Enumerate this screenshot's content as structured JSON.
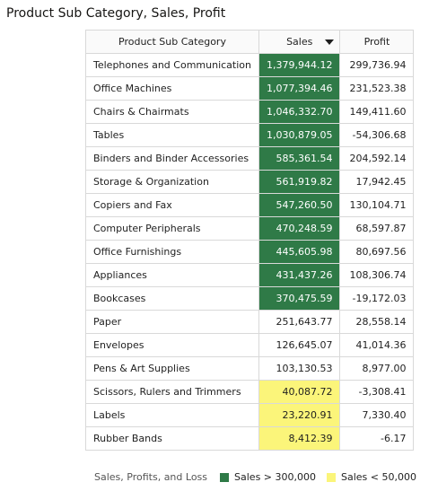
{
  "title": "Product Sub Category, Sales, Profit",
  "columns": {
    "category": "Product Sub Category",
    "sales": "Sales",
    "profit": "Profit"
  },
  "sort_icon": "caret-down-icon",
  "colors": {
    "high": "#2f7a47",
    "low": "#fbf57a"
  },
  "rows": [
    {
      "category": "Telephones and Communication",
      "sales": "1,379,944.12",
      "profit": "299,736.94",
      "band": "high"
    },
    {
      "category": "Office Machines",
      "sales": "1,077,394.46",
      "profit": "231,523.38",
      "band": "high"
    },
    {
      "category": "Chairs & Chairmats",
      "sales": "1,046,332.70",
      "profit": "149,411.60",
      "band": "high"
    },
    {
      "category": "Tables",
      "sales": "1,030,879.05",
      "profit": "-54,306.68",
      "band": "high"
    },
    {
      "category": "Binders and Binder Accessories",
      "sales": "585,361.54",
      "profit": "204,592.14",
      "band": "high"
    },
    {
      "category": "Storage & Organization",
      "sales": "561,919.82",
      "profit": "17,942.45",
      "band": "high"
    },
    {
      "category": "Copiers and Fax",
      "sales": "547,260.50",
      "profit": "130,104.71",
      "band": "high"
    },
    {
      "category": "Computer Peripherals",
      "sales": "470,248.59",
      "profit": "68,597.87",
      "band": "high"
    },
    {
      "category": "Office Furnishings",
      "sales": "445,605.98",
      "profit": "80,697.56",
      "band": "high"
    },
    {
      "category": "Appliances",
      "sales": "431,437.26",
      "profit": "108,306.74",
      "band": "high"
    },
    {
      "category": "Bookcases",
      "sales": "370,475.59",
      "profit": "-19,172.03",
      "band": "high"
    },
    {
      "category": "Paper",
      "sales": "251,643.77",
      "profit": "28,558.14",
      "band": "none"
    },
    {
      "category": "Envelopes",
      "sales": "126,645.07",
      "profit": "41,014.36",
      "band": "none"
    },
    {
      "category": "Pens & Art Supplies",
      "sales": "103,130.53",
      "profit": "8,977.00",
      "band": "none"
    },
    {
      "category": "Scissors, Rulers and Trimmers",
      "sales": "40,087.72",
      "profit": "-3,308.41",
      "band": "low"
    },
    {
      "category": "Labels",
      "sales": "23,220.91",
      "profit": "7,330.40",
      "band": "low"
    },
    {
      "category": "Rubber Bands",
      "sales": "8,412.39",
      "profit": "-6.17",
      "band": "low"
    }
  ],
  "legend": {
    "title": "Sales, Profits, and Loss",
    "items": [
      {
        "label": "Sales > 300,000",
        "color": "#2f7a47"
      },
      {
        "label": "Sales < 50,000",
        "color": "#fbf57a"
      }
    ]
  }
}
